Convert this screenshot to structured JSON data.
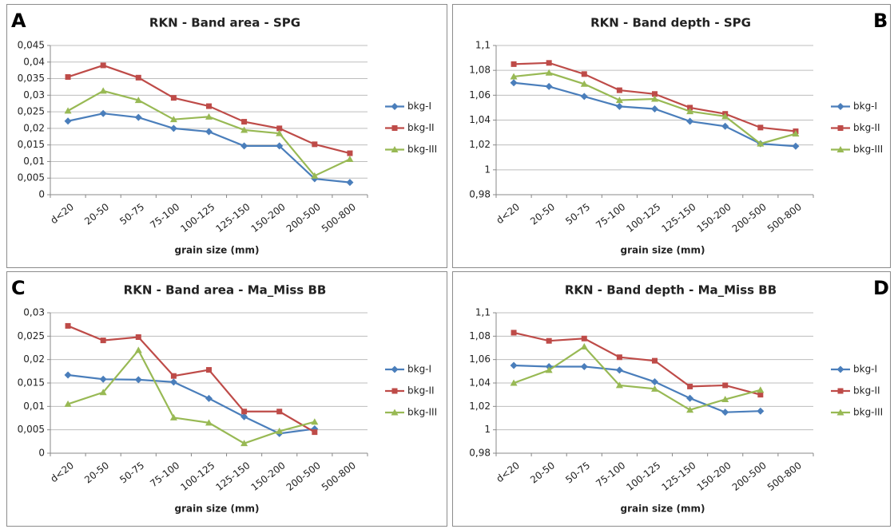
{
  "chart_data": [
    {
      "type": "line",
      "panel_label": "A",
      "panel_label_corner": "left",
      "title": "RKN - Band area - SPG",
      "x_label": "grain size (mm)",
      "categories": [
        "d<20",
        "20-50",
        "50-75",
        "75-100",
        "100-125",
        "125-150",
        "150-200",
        "200-500",
        "500-800"
      ],
      "ylim": [
        0,
        0.045
      ],
      "yticks": [
        0,
        {
          "value": 0.005,
          "label": "0,005"
        },
        {
          "value": 0.01,
          "label": "0,01"
        },
        {
          "value": 0.015,
          "label": "0,015"
        },
        {
          "value": 0.02,
          "label": "0,02"
        },
        {
          "value": 0.025,
          "label": "0,025"
        },
        {
          "value": 0.03,
          "label": "0,03"
        },
        {
          "value": 0.035,
          "label": "0,035"
        },
        {
          "value": 0.04,
          "label": "0,04"
        },
        {
          "value": 0.045,
          "label": "0,045"
        }
      ],
      "grid": true,
      "series": [
        {
          "name": "bkg-I",
          "color": "#4a7ebb",
          "marker": "diamond",
          "values": [
            0.0222,
            0.0245,
            0.0233,
            0.02,
            0.019,
            0.0147,
            0.0147,
            0.0048,
            0.0037
          ]
        },
        {
          "name": "bkg-II",
          "color": "#be4b48",
          "marker": "square",
          "values": [
            0.0355,
            0.039,
            0.0353,
            0.0292,
            0.0267,
            0.022,
            0.02,
            0.0152,
            0.0125
          ]
        },
        {
          "name": "bkg-III",
          "color": "#98b954",
          "marker": "triangle",
          "values": [
            0.0253,
            0.0313,
            0.0285,
            0.0227,
            0.0235,
            0.0195,
            0.0185,
            0.0057,
            0.0107
          ]
        }
      ]
    },
    {
      "type": "line",
      "panel_label": "B",
      "panel_label_corner": "right",
      "title": "RKN - Band depth - SPG",
      "x_label": "grain size (mm)",
      "categories": [
        "d<20",
        "20-50",
        "50-75",
        "75-100",
        "100-125",
        "125-150",
        "150-200",
        "200-500",
        "500-800"
      ],
      "ylim": [
        0.98,
        1.1
      ],
      "yticks": [
        {
          "value": 0.98,
          "label": "0,98"
        },
        1,
        {
          "value": 1.02,
          "label": "1,02"
        },
        {
          "value": 1.04,
          "label": "1,04"
        },
        {
          "value": 1.06,
          "label": "1,06"
        },
        {
          "value": 1.08,
          "label": "1,08"
        },
        {
          "value": 1.1,
          "label": "1,1"
        }
      ],
      "grid": true,
      "series": [
        {
          "name": "bkg-I",
          "color": "#4a7ebb",
          "marker": "diamond",
          "values": [
            1.07,
            1.067,
            1.059,
            1.051,
            1.049,
            1.039,
            1.035,
            1.021,
            1.019
          ]
        },
        {
          "name": "bkg-II",
          "color": "#be4b48",
          "marker": "square",
          "values": [
            1.085,
            1.086,
            1.077,
            1.064,
            1.061,
            1.05,
            1.045,
            1.034,
            1.031
          ]
        },
        {
          "name": "bkg-III",
          "color": "#98b954",
          "marker": "triangle",
          "values": [
            1.075,
            1.078,
            1.069,
            1.056,
            1.057,
            1.047,
            1.043,
            1.021,
            1.029
          ]
        }
      ]
    },
    {
      "type": "line",
      "panel_label": "C",
      "panel_label_corner": "left",
      "title": "RKN - Band area - Ma_Miss BB",
      "x_label": "grain size (mm)",
      "categories": [
        "d<20",
        "20-50",
        "50-75",
        "75-100",
        "100-125",
        "125-150",
        "150-200",
        "200-500",
        "500-800"
      ],
      "ylim": [
        0,
        0.03
      ],
      "yticks": [
        0,
        {
          "value": 0.005,
          "label": "0,005"
        },
        {
          "value": 0.01,
          "label": "0,01"
        },
        {
          "value": 0.015,
          "label": "0,015"
        },
        {
          "value": 0.02,
          "label": "0,02"
        },
        {
          "value": 0.025,
          "label": "0,025"
        },
        {
          "value": 0.03,
          "label": "0,03"
        }
      ],
      "grid": true,
      "series": [
        {
          "name": "bkg-I",
          "color": "#4a7ebb",
          "marker": "diamond",
          "values": [
            0.0167,
            0.0158,
            0.0157,
            0.0152,
            0.0117,
            0.0078,
            0.0042,
            0.0052,
            null
          ]
        },
        {
          "name": "bkg-II",
          "color": "#be4b48",
          "marker": "square",
          "values": [
            0.0272,
            0.0241,
            0.0248,
            0.0165,
            0.0178,
            0.0089,
            0.0089,
            0.0045,
            null
          ]
        },
        {
          "name": "bkg-III",
          "color": "#98b954",
          "marker": "triangle",
          "values": [
            0.0105,
            0.013,
            0.022,
            0.0076,
            0.0065,
            0.0021,
            0.0047,
            0.0067,
            null
          ]
        }
      ]
    },
    {
      "type": "line",
      "panel_label": "D",
      "panel_label_corner": "right",
      "title": "RKN - Band depth - Ma_Miss BB",
      "x_label": "grain size (mm)",
      "categories": [
        "d<20",
        "20-50",
        "50-75",
        "75-100",
        "100-125",
        "125-150",
        "150-200",
        "200-500",
        "500-800"
      ],
      "ylim": [
        0.98,
        1.1
      ],
      "yticks": [
        {
          "value": 0.98,
          "label": "0,98"
        },
        1,
        {
          "value": 1.02,
          "label": "1,02"
        },
        {
          "value": 1.04,
          "label": "1,04"
        },
        {
          "value": 1.06,
          "label": "1,06"
        },
        {
          "value": 1.08,
          "label": "1,08"
        },
        {
          "value": 1.1,
          "label": "1,1"
        }
      ],
      "grid": true,
      "series": [
        {
          "name": "bkg-I",
          "color": "#4a7ebb",
          "marker": "diamond",
          "values": [
            1.055,
            1.054,
            1.054,
            1.051,
            1.041,
            1.027,
            1.015,
            1.016,
            null
          ]
        },
        {
          "name": "bkg-II",
          "color": "#be4b48",
          "marker": "square",
          "values": [
            1.083,
            1.076,
            1.078,
            1.062,
            1.059,
            1.037,
            1.038,
            1.03,
            null
          ]
        },
        {
          "name": "bkg-III",
          "color": "#98b954",
          "marker": "triangle",
          "values": [
            1.04,
            1.051,
            1.071,
            1.038,
            1.035,
            1.017,
            1.026,
            1.034,
            null
          ]
        }
      ]
    }
  ]
}
